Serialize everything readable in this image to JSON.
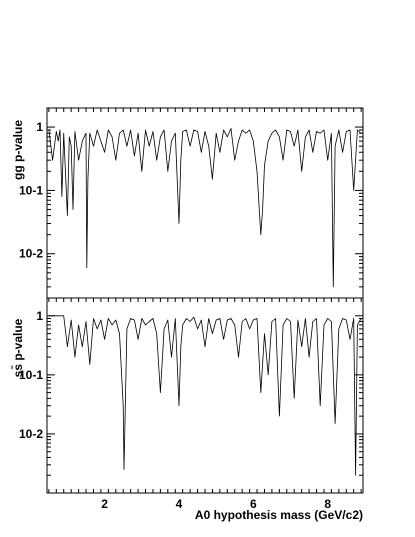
{
  "chart_data": [
    {
      "type": "line",
      "ylabel": "gg p-value",
      "yscale": "log",
      "ylim": [
        0.002,
        2
      ],
      "xlim": [
        0.45,
        8.95
      ],
      "yticks": [
        {
          "v": 1,
          "label": "1"
        },
        {
          "v": 0.1,
          "label": "10-1"
        },
        {
          "v": 0.01,
          "label": "10-2"
        }
      ],
      "x": [
        0.5,
        0.6,
        0.7,
        0.75,
        0.8,
        0.85,
        0.9,
        1.0,
        1.05,
        1.1,
        1.15,
        1.2,
        1.3,
        1.4,
        1.5,
        1.52,
        1.55,
        1.6,
        1.7,
        1.8,
        1.9,
        2.0,
        2.1,
        2.2,
        2.3,
        2.4,
        2.5,
        2.6,
        2.7,
        2.8,
        2.9,
        3.0,
        3.1,
        3.2,
        3.3,
        3.4,
        3.5,
        3.6,
        3.7,
        3.8,
        3.9,
        4.0,
        4.05,
        4.1,
        4.2,
        4.3,
        4.4,
        4.5,
        4.6,
        4.7,
        4.8,
        4.9,
        5.0,
        5.1,
        5.2,
        5.3,
        5.4,
        5.5,
        5.6,
        5.7,
        5.8,
        5.9,
        6.0,
        6.1,
        6.2,
        6.25,
        6.3,
        6.4,
        6.5,
        6.6,
        6.7,
        6.8,
        6.9,
        7.0,
        7.1,
        7.2,
        7.3,
        7.4,
        7.5,
        7.6,
        7.7,
        7.8,
        7.9,
        8.0,
        8.1,
        8.15,
        8.2,
        8.3,
        8.4,
        8.5,
        8.6,
        8.7,
        8.8,
        8.9
      ],
      "y": [
        0.9,
        0.3,
        0.85,
        0.6,
        0.9,
        0.08,
        0.8,
        0.04,
        0.7,
        0.5,
        0.05,
        0.85,
        0.3,
        0.6,
        0.8,
        0.006,
        0.15,
        0.8,
        0.5,
        0.9,
        0.6,
        0.4,
        0.9,
        0.7,
        0.3,
        0.8,
        0.9,
        0.5,
        0.9,
        0.35,
        0.8,
        0.2,
        0.9,
        0.5,
        0.85,
        0.3,
        0.7,
        0.9,
        0.2,
        0.6,
        0.8,
        0.03,
        0.3,
        0.85,
        0.9,
        0.5,
        0.9,
        0.85,
        0.4,
        0.85,
        0.5,
        0.15,
        0.8,
        0.4,
        0.9,
        0.7,
        0.95,
        0.3,
        0.6,
        0.9,
        0.8,
        0.9,
        0.6,
        0.2,
        0.02,
        0.05,
        0.25,
        0.6,
        0.8,
        0.9,
        0.7,
        0.3,
        0.9,
        0.85,
        0.5,
        0.9,
        0.2,
        0.7,
        0.9,
        0.4,
        0.85,
        0.8,
        0.9,
        0.3,
        0.8,
        0.003,
        0.5,
        0.9,
        0.4,
        0.85,
        0.9,
        0.1,
        0.9,
        0.8
      ]
    },
    {
      "type": "line",
      "ylabel": "ss̄ p-value",
      "yscale": "log",
      "ylim": [
        0.001,
        2
      ],
      "xlim": [
        0.45,
        8.95
      ],
      "xlabel": "A0 hypothesis mass (GeV/c2)",
      "xticks": [
        2,
        4,
        6,
        8
      ],
      "yticks": [
        {
          "v": 1,
          "label": "1"
        },
        {
          "v": 0.1,
          "label": "10-1"
        },
        {
          "v": 0.01,
          "label": "10-2"
        }
      ],
      "x": [
        0.5,
        0.6,
        0.7,
        0.8,
        0.9,
        1.0,
        1.1,
        1.2,
        1.3,
        1.4,
        1.5,
        1.6,
        1.7,
        1.8,
        1.9,
        2.0,
        2.1,
        2.2,
        2.3,
        2.4,
        2.5,
        2.52,
        2.55,
        2.6,
        2.7,
        2.8,
        2.9,
        3.0,
        3.1,
        3.2,
        3.3,
        3.4,
        3.5,
        3.6,
        3.7,
        3.8,
        3.9,
        4.0,
        4.05,
        4.1,
        4.2,
        4.3,
        4.4,
        4.5,
        4.6,
        4.7,
        4.8,
        4.9,
        5.0,
        5.1,
        5.2,
        5.3,
        5.4,
        5.5,
        5.6,
        5.7,
        5.8,
        5.9,
        6.0,
        6.1,
        6.2,
        6.3,
        6.4,
        6.5,
        6.6,
        6.7,
        6.8,
        6.9,
        7.0,
        7.1,
        7.2,
        7.3,
        7.4,
        7.5,
        7.6,
        7.7,
        7.8,
        7.9,
        8.0,
        8.1,
        8.2,
        8.3,
        8.4,
        8.5,
        8.6,
        8.7,
        8.75,
        8.8,
        8.9
      ],
      "y": [
        1,
        1,
        1,
        1,
        1,
        0.3,
        0.85,
        0.2,
        0.7,
        0.3,
        0.8,
        0.15,
        0.9,
        0.6,
        0.85,
        0.4,
        0.9,
        0.7,
        0.85,
        0.5,
        0.03,
        0.0025,
        0.02,
        0.6,
        0.9,
        0.85,
        0.4,
        0.9,
        0.7,
        0.8,
        0.9,
        0.5,
        0.05,
        0.6,
        0.85,
        0.2,
        0.9,
        0.03,
        0.3,
        0.7,
        0.9,
        0.8,
        0.95,
        0.6,
        0.85,
        0.3,
        0.9,
        0.5,
        0.85,
        0.9,
        0.4,
        0.85,
        0.9,
        0.7,
        0.2,
        0.8,
        0.9,
        0.6,
        0.85,
        0.9,
        0.05,
        0.5,
        0.1,
        0.8,
        0.9,
        0.02,
        0.7,
        0.9,
        0.8,
        0.04,
        0.85,
        0.3,
        0.9,
        0.2,
        0.8,
        0.9,
        0.03,
        0.7,
        0.9,
        0.8,
        0.015,
        0.6,
        0.9,
        0.85,
        0.4,
        0.9,
        0.002,
        0.7,
        0.9
      ]
    }
  ]
}
